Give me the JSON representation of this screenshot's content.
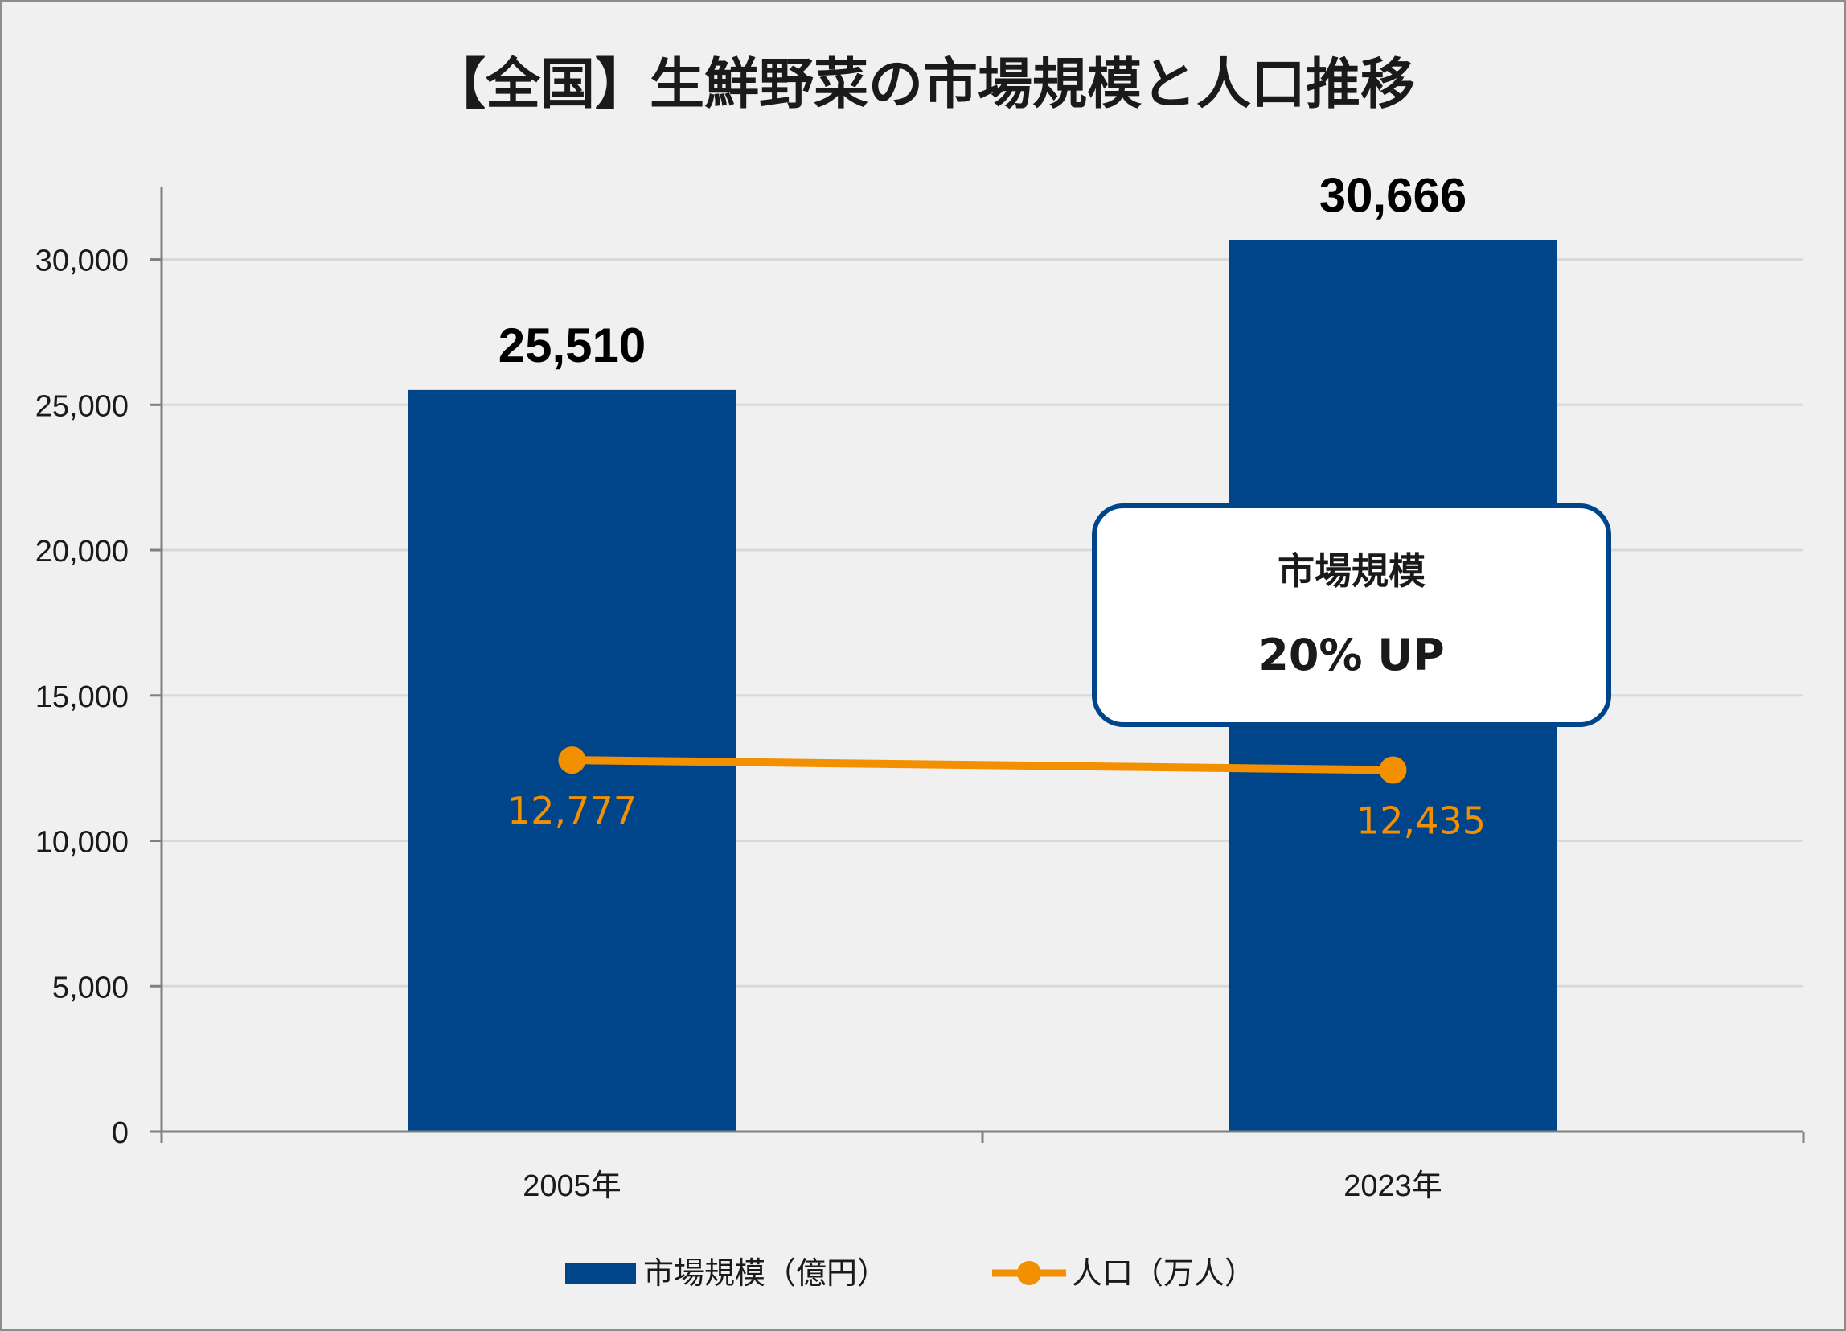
{
  "chart_data": {
    "type": "bar",
    "title": "【全国】生鮮野菜の市場規模と人口推移",
    "categories": [
      "2005年",
      "2023年"
    ],
    "series": [
      {
        "name": "市場規模（億円）",
        "type": "bar",
        "values": [
          25510,
          30666
        ],
        "labels": [
          "25,510",
          "30,666"
        ],
        "color": "#00458a"
      },
      {
        "name": "人口（万人）",
        "type": "line",
        "values": [
          12777,
          12435
        ],
        "labels": [
          "12,777",
          "12,435"
        ],
        "color": "#f39000"
      }
    ],
    "ylim": [
      0,
      33750
    ],
    "yticks": [
      0,
      5000,
      10000,
      15000,
      20000,
      25000,
      30000
    ],
    "ytick_labels": [
      "0",
      "5,000",
      "10,000",
      "15,000",
      "20,000",
      "25,000",
      "30,000"
    ],
    "grid": true,
    "legend_position": "bottom",
    "annotation": {
      "line1": "市場規模",
      "line2": "20% UP"
    }
  }
}
